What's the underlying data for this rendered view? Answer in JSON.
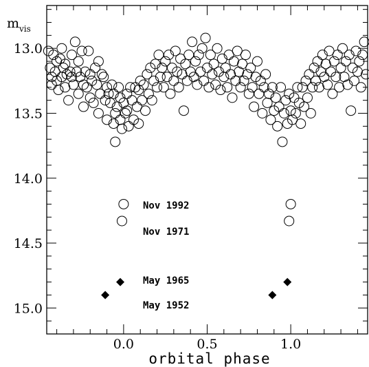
{
  "chart_data": {
    "type": "scatter",
    "xlabel": "orbital phase",
    "ylabel_main": "m",
    "ylabel_sub": "vis",
    "xlim": [
      -0.46,
      1.46
    ],
    "ylim": [
      15.2,
      12.67
    ],
    "y_inverted": true,
    "x_ticks": [
      0.0,
      0.5,
      1.0
    ],
    "x_tick_labels": [
      "0.0",
      "0.5",
      "1.0"
    ],
    "x_minor_step": 0.1,
    "y_ticks": [
      13.0,
      13.5,
      14.0,
      14.5,
      15.0
    ],
    "y_tick_labels": [
      "13.0",
      "13.5",
      "14.0",
      "14.5",
      "15.0"
    ],
    "y_minor_step": 0.1,
    "grid": false,
    "legend": [
      {
        "label": "Nov 1992",
        "marker": "open-circle"
      },
      {
        "label": "Nov 1971",
        "marker": "open-circle"
      },
      {
        "label": "May 1965",
        "marker": "filled-diamond"
      },
      {
        "label": "May 1952",
        "marker": "filled-diamond"
      }
    ],
    "series": [
      {
        "marker": "open-circle",
        "comment_free_points": true,
        "points": [
          [
            -0.45,
            13.02
          ],
          [
            -0.44,
            13.15
          ],
          [
            -0.43,
            13.22
          ],
          [
            -0.43,
            13.28
          ],
          [
            -0.42,
            13.05
          ],
          [
            -0.41,
            13.18
          ],
          [
            -0.4,
            13.1
          ],
          [
            -0.4,
            13.25
          ],
          [
            -0.39,
            13.32
          ],
          [
            -0.38,
            13.08
          ],
          [
            -0.37,
            13.0
          ],
          [
            -0.37,
            13.22
          ],
          [
            -0.36,
            13.15
          ],
          [
            -0.35,
            13.3
          ],
          [
            -0.35,
            13.12
          ],
          [
            -0.34,
            13.2
          ],
          [
            -0.33,
            13.4
          ],
          [
            -0.32,
            13.18
          ],
          [
            -0.31,
            13.05
          ],
          [
            -0.31,
            13.22
          ],
          [
            -0.3,
            13.28
          ],
          [
            -0.29,
            12.95
          ],
          [
            -0.28,
            13.18
          ],
          [
            -0.27,
            13.1
          ],
          [
            -0.27,
            13.35
          ],
          [
            -0.26,
            13.22
          ],
          [
            -0.25,
            13.02
          ],
          [
            -0.24,
            13.28
          ],
          [
            -0.24,
            13.45
          ],
          [
            -0.23,
            13.18
          ],
          [
            -0.22,
            13.3
          ],
          [
            -0.21,
            13.02
          ],
          [
            -0.2,
            13.38
          ],
          [
            -0.2,
            13.2
          ],
          [
            -0.19,
            13.25
          ],
          [
            -0.18,
            13.42
          ],
          [
            -0.17,
            13.15
          ],
          [
            -0.16,
            13.28
          ],
          [
            -0.15,
            13.1
          ],
          [
            -0.15,
            13.5
          ],
          [
            -0.14,
            13.35
          ],
          [
            -0.13,
            13.2
          ],
          [
            -0.12,
            13.22
          ],
          [
            -0.11,
            13.4
          ],
          [
            -0.1,
            13.3
          ],
          [
            -0.1,
            13.55
          ],
          [
            -0.09,
            13.35
          ],
          [
            -0.08,
            13.42
          ],
          [
            -0.07,
            13.28
          ],
          [
            -0.06,
            13.58
          ],
          [
            -0.06,
            13.35
          ],
          [
            -0.05,
            13.5
          ],
          [
            -0.05,
            13.72
          ],
          [
            -0.04,
            13.45
          ],
          [
            -0.03,
            13.3
          ],
          [
            -0.02,
            13.55
          ],
          [
            -0.02,
            13.38
          ],
          [
            -0.01,
            13.62
          ],
          [
            0.0,
            13.42
          ],
          [
            0.01,
            13.5
          ],
          [
            0.02,
            13.35
          ],
          [
            0.02,
            13.48
          ],
          [
            0.03,
            13.6
          ],
          [
            0.04,
            13.3
          ],
          [
            0.05,
            13.4
          ],
          [
            0.06,
            13.55
          ],
          [
            0.07,
            13.3
          ],
          [
            0.08,
            13.45
          ],
          [
            0.09,
            13.32
          ],
          [
            0.09,
            13.58
          ],
          [
            0.1,
            13.25
          ],
          [
            0.11,
            13.4
          ],
          [
            0.12,
            13.28
          ],
          [
            0.13,
            13.48
          ],
          [
            0.14,
            13.2
          ],
          [
            0.15,
            13.35
          ],
          [
            0.16,
            13.15
          ],
          [
            0.17,
            13.4
          ],
          [
            0.18,
            13.25
          ],
          [
            0.19,
            13.12
          ],
          [
            0.2,
            13.3
          ],
          [
            0.21,
            13.05
          ],
          [
            0.22,
            13.22
          ],
          [
            0.23,
            13.15
          ],
          [
            0.24,
            13.3
          ],
          [
            0.25,
            13.1
          ],
          [
            0.26,
            13.22
          ],
          [
            0.27,
            13.05
          ],
          [
            0.28,
            13.35
          ],
          [
            0.29,
            13.15
          ],
          [
            0.3,
            13.25
          ],
          [
            0.31,
            13.02
          ],
          [
            0.32,
            13.18
          ],
          [
            0.33,
            13.3
          ],
          [
            0.34,
            13.08
          ],
          [
            0.35,
            13.2
          ],
          [
            0.36,
            13.48
          ],
          [
            0.37,
            13.12
          ],
          [
            0.38,
            13.25
          ],
          [
            0.39,
            13.05
          ],
          [
            0.4,
            13.18
          ],
          [
            0.41,
            12.95
          ],
          [
            0.42,
            13.22
          ],
          [
            0.43,
            13.1
          ],
          [
            0.44,
            13.28
          ],
          [
            0.45,
            13.05
          ],
          [
            0.46,
            13.18
          ],
          [
            0.47,
            13.0
          ],
          [
            0.48,
            13.25
          ],
          [
            0.49,
            12.92
          ],
          [
            0.5,
            13.15
          ],
          [
            0.51,
            13.3
          ],
          [
            0.52,
            13.05
          ],
          [
            0.53,
            13.2
          ],
          [
            0.54,
            13.12
          ],
          [
            0.55,
            13.28
          ],
          [
            0.56,
            13.0
          ],
          [
            0.57,
            13.18
          ],
          [
            0.58,
            13.32
          ],
          [
            0.59,
            13.08
          ],
          [
            0.6,
            13.22
          ],
          [
            0.61,
            13.15
          ],
          [
            0.62,
            13.3
          ],
          [
            0.63,
            13.05
          ],
          [
            0.64,
            13.2
          ],
          [
            0.65,
            13.38
          ],
          [
            0.66,
            13.1
          ],
          [
            0.67,
            13.25
          ],
          [
            0.68,
            13.02
          ],
          [
            0.69,
            13.18
          ],
          [
            0.7,
            13.3
          ],
          [
            0.71,
            13.12
          ],
          [
            0.72,
            13.25
          ],
          [
            0.73,
            13.05
          ],
          [
            0.74,
            13.2
          ],
          [
            0.75,
            13.35
          ],
          [
            0.76,
            13.15
          ],
          [
            0.77,
            13.3
          ],
          [
            0.78,
            13.45
          ],
          [
            0.79,
            13.22
          ],
          [
            0.8,
            13.1
          ],
          [
            0.81,
            13.35
          ],
          [
            0.82,
            13.25
          ],
          [
            0.83,
            13.5
          ],
          [
            0.84,
            13.3
          ],
          [
            0.85,
            13.2
          ],
          [
            0.86,
            13.42
          ],
          [
            0.87,
            13.35
          ],
          [
            0.88,
            13.55
          ],
          [
            0.89,
            13.3
          ],
          [
            0.9,
            13.48
          ],
          [
            0.91,
            13.38
          ],
          [
            0.92,
            13.6
          ],
          [
            0.93,
            13.45
          ],
          [
            0.94,
            13.3
          ],
          [
            0.95,
            13.72
          ],
          [
            0.96,
            13.5
          ],
          [
            0.97,
            13.4
          ],
          [
            0.98,
            13.58
          ],
          [
            0.99,
            13.35
          ],
          [
            1.0,
            13.48
          ],
          [
            1.01,
            13.55
          ],
          [
            1.02,
            13.38
          ],
          [
            1.03,
            13.5
          ],
          [
            1.04,
            13.3
          ],
          [
            1.05,
            13.42
          ],
          [
            1.06,
            13.58
          ],
          [
            1.07,
            13.3
          ],
          [
            1.08,
            13.45
          ],
          [
            1.09,
            13.25
          ],
          [
            1.1,
            13.38
          ],
          [
            1.11,
            13.2
          ],
          [
            1.12,
            13.5
          ],
          [
            1.13,
            13.3
          ],
          [
            1.14,
            13.15
          ],
          [
            1.15,
            13.25
          ],
          [
            1.16,
            13.1
          ],
          [
            1.17,
            13.3
          ],
          [
            1.18,
            13.18
          ],
          [
            1.19,
            13.05
          ],
          [
            1.2,
            13.22
          ],
          [
            1.21,
            13.12
          ],
          [
            1.22,
            13.28
          ],
          [
            1.23,
            13.02
          ],
          [
            1.24,
            13.18
          ],
          [
            1.25,
            13.35
          ],
          [
            1.26,
            13.1
          ],
          [
            1.27,
            13.22
          ],
          [
            1.28,
            13.05
          ],
          [
            1.29,
            13.3
          ],
          [
            1.3,
            13.15
          ],
          [
            1.31,
            13.0
          ],
          [
            1.32,
            13.22
          ],
          [
            1.33,
            13.1
          ],
          [
            1.34,
            13.28
          ],
          [
            1.35,
            13.05
          ],
          [
            1.36,
            13.48
          ],
          [
            1.37,
            13.15
          ],
          [
            1.38,
            13.25
          ],
          [
            1.39,
            13.02
          ],
          [
            1.4,
            13.18
          ],
          [
            1.41,
            13.1
          ],
          [
            1.42,
            13.3
          ],
          [
            1.43,
            13.05
          ],
          [
            1.44,
            12.95
          ],
          [
            1.45,
            13.2
          ],
          [
            0.0,
            14.2
          ],
          [
            -0.01,
            14.33
          ],
          [
            1.0,
            14.2
          ],
          [
            0.99,
            14.33
          ]
        ]
      },
      {
        "marker": "filled-diamond",
        "points": [
          [
            -0.11,
            14.9
          ],
          [
            -0.02,
            14.8
          ],
          [
            0.89,
            14.9
          ],
          [
            0.98,
            14.8
          ]
        ]
      }
    ]
  }
}
